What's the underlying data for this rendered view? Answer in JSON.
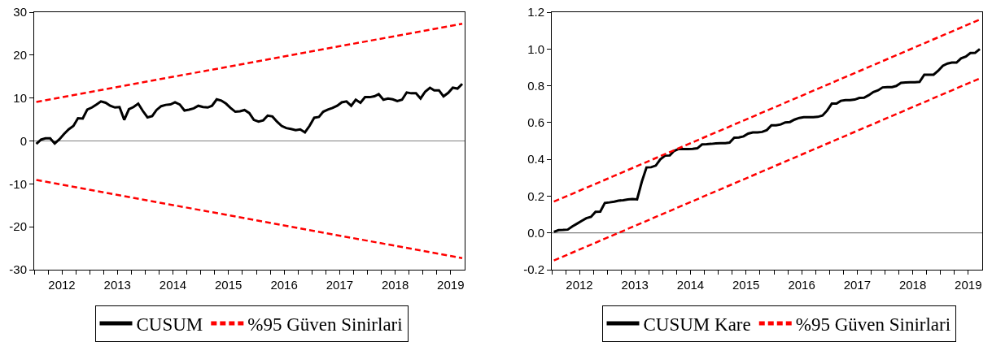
{
  "chart_data": [
    {
      "type": "line",
      "x": [
        "2012-01-15",
        "2012-02-15",
        "2012-03-15",
        "2012-04-15",
        "2012-05-15",
        "2012-06-15",
        "2012-07-15",
        "2012-08-15",
        "2012-09-15",
        "2012-10-15",
        "2012-11-15",
        "2012-12-15",
        "2013-01-15",
        "2013-02-15",
        "2013-03-15",
        "2013-04-15",
        "2013-05-15",
        "2013-06-15",
        "2013-07-15",
        "2013-08-15",
        "2013-09-15",
        "2013-10-15",
        "2013-11-15",
        "2013-12-15",
        "2014-01-15",
        "2014-02-15",
        "2014-03-15",
        "2014-04-15",
        "2014-05-15",
        "2014-06-15",
        "2014-07-15",
        "2014-08-15",
        "2014-09-15",
        "2014-10-15",
        "2014-11-15",
        "2014-12-15",
        "2015-01-15",
        "2015-02-15",
        "2015-03-15",
        "2015-04-15",
        "2015-05-15",
        "2015-06-15",
        "2015-07-15",
        "2015-08-15",
        "2015-09-15",
        "2015-10-15",
        "2015-11-15",
        "2015-12-15",
        "2016-01-15",
        "2016-02-15",
        "2016-03-15",
        "2016-04-15",
        "2016-05-15",
        "2016-06-15",
        "2016-07-15",
        "2016-08-15",
        "2016-09-15",
        "2016-10-15",
        "2016-11-15",
        "2016-12-15",
        "2017-01-15",
        "2017-02-15",
        "2017-03-15",
        "2017-04-15",
        "2017-05-15",
        "2017-06-15",
        "2017-07-15",
        "2017-08-15",
        "2017-09-15",
        "2017-10-15",
        "2017-11-15",
        "2017-12-15",
        "2018-01-15",
        "2018-02-15",
        "2018-03-15",
        "2018-04-15",
        "2018-05-15",
        "2018-06-15",
        "2018-07-15",
        "2018-08-15",
        "2018-09-15",
        "2018-10-15",
        "2018-11-15",
        "2018-12-15",
        "2019-01-15",
        "2019-02-15",
        "2019-03-15",
        "2019-04-15",
        "2019-05-15",
        "2019-06-15",
        "2019-07-15",
        "2019-08-15",
        "2019-09-15"
      ],
      "series": [
        {
          "name": "CUSUM",
          "color": "#000000",
          "line_style": "solid",
          "values": [
            -0.7,
            0.3,
            0.6,
            0.6,
            -0.6,
            0.4,
            1.6,
            2.7,
            3.5,
            5.3,
            5.2,
            7.3,
            7.8,
            8.5,
            9.2,
            8.9,
            8.2,
            7.8,
            7.9,
            4.9,
            7.4,
            7.9,
            8.7,
            7.0,
            5.5,
            5.8,
            7.2,
            8.1,
            8.4,
            8.5,
            9.0,
            8.5,
            7.1,
            7.3,
            7.6,
            8.2,
            7.9,
            7.8,
            8.2,
            9.7,
            9.4,
            8.7,
            7.7,
            6.8,
            6.9,
            7.2,
            6.5,
            4.9,
            4.5,
            4.8,
            5.9,
            5.7,
            4.5,
            3.5,
            3.0,
            2.8,
            2.5,
            2.7,
            2.0,
            3.5,
            5.4,
            5.6,
            6.8,
            7.3,
            7.7,
            8.2,
            9.0,
            9.2,
            8.2,
            9.6,
            8.9,
            10.2,
            10.2,
            10.4,
            10.9,
            9.6,
            9.9,
            9.7,
            9.3,
            9.6,
            11.3,
            11.1,
            11.1,
            9.9,
            11.5,
            12.4,
            11.8,
            11.8,
            10.4,
            11.2,
            12.4,
            12.2,
            13.3
          ]
        },
        {
          "name": "%95 Güven Sinirlari",
          "color": "#ff0000",
          "line_style": "dashed",
          "x": [
            "2012-01-15",
            "2019-09-15"
          ],
          "values": [
            9.1,
            27.3
          ]
        },
        {
          "color": "#ff0000",
          "line_style": "dashed",
          "x": [
            "2012-01-15",
            "2019-09-15"
          ],
          "values": [
            -9.1,
            -27.3
          ]
        }
      ],
      "xlim": [
        "2012-01-01",
        "2019-10-01"
      ],
      "xticks": [
        {
          "value": "2012-01-01",
          "label": null
        },
        {
          "value": "2012-04-01",
          "label": null
        },
        {
          "value": "2012-07-01",
          "label": "2012"
        },
        {
          "value": "2012-10-01",
          "label": null
        },
        {
          "value": "2013-01-01",
          "label": null
        },
        {
          "value": "2013-04-01",
          "label": null
        },
        {
          "value": "2013-07-01",
          "label": "2013"
        },
        {
          "value": "2013-10-01",
          "label": null
        },
        {
          "value": "2014-01-01",
          "label": null
        },
        {
          "value": "2014-04-01",
          "label": null
        },
        {
          "value": "2014-07-01",
          "label": "2014"
        },
        {
          "value": "2014-10-01",
          "label": null
        },
        {
          "value": "2015-01-01",
          "label": null
        },
        {
          "value": "2015-04-01",
          "label": null
        },
        {
          "value": "2015-07-01",
          "label": "2015"
        },
        {
          "value": "2015-10-01",
          "label": null
        },
        {
          "value": "2016-01-01",
          "label": null
        },
        {
          "value": "2016-04-01",
          "label": null
        },
        {
          "value": "2016-07-01",
          "label": "2016"
        },
        {
          "value": "2016-10-01",
          "label": null
        },
        {
          "value": "2017-01-01",
          "label": null
        },
        {
          "value": "2017-04-01",
          "label": null
        },
        {
          "value": "2017-07-01",
          "label": "2017"
        },
        {
          "value": "2017-10-01",
          "label": null
        },
        {
          "value": "2018-01-01",
          "label": null
        },
        {
          "value": "2018-04-01",
          "label": null
        },
        {
          "value": "2018-07-01",
          "label": "2018"
        },
        {
          "value": "2018-10-01",
          "label": null
        },
        {
          "value": "2019-01-01",
          "label": null
        },
        {
          "value": "2019-04-01",
          "label": null
        },
        {
          "value": "2019-07-01",
          "label": "2019"
        }
      ],
      "ylim": [
        -30,
        30
      ],
      "yticks": [
        -30,
        -20,
        -10,
        0,
        10,
        20,
        30
      ],
      "ref_lines": [
        {
          "axis": "y",
          "value": 0,
          "color": "#808080"
        }
      ],
      "grid": false,
      "legend": "bottom"
    },
    {
      "type": "line",
      "x": [
        "2012-01-15",
        "2012-02-15",
        "2012-03-15",
        "2012-04-15",
        "2012-05-15",
        "2012-06-15",
        "2012-07-15",
        "2012-08-15",
        "2012-09-15",
        "2012-10-15",
        "2012-11-15",
        "2012-12-15",
        "2013-01-15",
        "2013-02-15",
        "2013-03-15",
        "2013-04-15",
        "2013-05-15",
        "2013-06-15",
        "2013-07-15",
        "2013-08-15",
        "2013-09-15",
        "2013-10-15",
        "2013-11-15",
        "2013-12-15",
        "2014-01-15",
        "2014-02-15",
        "2014-03-15",
        "2014-04-15",
        "2014-05-15",
        "2014-06-15",
        "2014-07-15",
        "2014-08-15",
        "2014-09-15",
        "2014-10-15",
        "2014-11-15",
        "2014-12-15",
        "2015-01-15",
        "2015-02-15",
        "2015-03-15",
        "2015-04-15",
        "2015-05-15",
        "2015-06-15",
        "2015-07-15",
        "2015-08-15",
        "2015-09-15",
        "2015-10-15",
        "2015-11-15",
        "2015-12-15",
        "2016-01-15",
        "2016-02-15",
        "2016-03-15",
        "2016-04-15",
        "2016-05-15",
        "2016-06-15",
        "2016-07-15",
        "2016-08-15",
        "2016-09-15",
        "2016-10-15",
        "2016-11-15",
        "2016-12-15",
        "2017-01-15",
        "2017-02-15",
        "2017-03-15",
        "2017-04-15",
        "2017-05-15",
        "2017-06-15",
        "2017-07-15",
        "2017-08-15",
        "2017-09-15",
        "2017-10-15",
        "2017-11-15",
        "2017-12-15",
        "2018-01-15",
        "2018-02-15",
        "2018-03-15",
        "2018-04-15",
        "2018-05-15",
        "2018-06-15",
        "2018-07-15",
        "2018-08-15",
        "2018-09-15",
        "2018-10-15",
        "2018-11-15",
        "2018-12-15",
        "2019-01-15",
        "2019-02-15",
        "2019-03-15",
        "2019-04-15",
        "2019-05-15",
        "2019-06-15",
        "2019-07-15",
        "2019-08-15",
        "2019-09-15"
      ],
      "series": [
        {
          "name": "CUSUM Kare",
          "color": "#000000",
          "line_style": "solid",
          "values": [
            0.006,
            0.015,
            0.016,
            0.018,
            0.035,
            0.05,
            0.065,
            0.08,
            0.087,
            0.115,
            0.116,
            0.163,
            0.166,
            0.17,
            0.175,
            0.178,
            0.182,
            0.184,
            0.182,
            0.278,
            0.356,
            0.357,
            0.366,
            0.4,
            0.42,
            0.421,
            0.446,
            0.456,
            0.456,
            0.456,
            0.457,
            0.46,
            0.481,
            0.482,
            0.484,
            0.487,
            0.488,
            0.488,
            0.491,
            0.518,
            0.519,
            0.525,
            0.54,
            0.546,
            0.546,
            0.549,
            0.559,
            0.585,
            0.585,
            0.59,
            0.601,
            0.603,
            0.616,
            0.625,
            0.629,
            0.629,
            0.629,
            0.631,
            0.638,
            0.665,
            0.703,
            0.703,
            0.718,
            0.722,
            0.722,
            0.725,
            0.734,
            0.735,
            0.749,
            0.766,
            0.775,
            0.791,
            0.793,
            0.793,
            0.799,
            0.816,
            0.818,
            0.819,
            0.819,
            0.821,
            0.86,
            0.86,
            0.86,
            0.881,
            0.909,
            0.921,
            0.926,
            0.926,
            0.949,
            0.959,
            0.978,
            0.979,
            1.0
          ]
        },
        {
          "name": "%95 Güven Sinirlari",
          "color": "#ff0000",
          "line_style": "dashed",
          "x": [
            "2012-01-15",
            "2019-09-15"
          ],
          "values": [
            0.17,
            1.16
          ]
        },
        {
          "color": "#ff0000",
          "line_style": "dashed",
          "x": [
            "2012-01-15",
            "2019-09-15"
          ],
          "values": [
            -0.15,
            0.84
          ]
        }
      ],
      "xlim": [
        "2012-01-01",
        "2019-10-01"
      ],
      "xticks": [
        {
          "value": "2012-01-01",
          "label": null
        },
        {
          "value": "2012-04-01",
          "label": null
        },
        {
          "value": "2012-07-01",
          "label": "2012"
        },
        {
          "value": "2012-10-01",
          "label": null
        },
        {
          "value": "2013-01-01",
          "label": null
        },
        {
          "value": "2013-04-01",
          "label": null
        },
        {
          "value": "2013-07-01",
          "label": "2013"
        },
        {
          "value": "2013-10-01",
          "label": null
        },
        {
          "value": "2014-01-01",
          "label": null
        },
        {
          "value": "2014-04-01",
          "label": null
        },
        {
          "value": "2014-07-01",
          "label": "2014"
        },
        {
          "value": "2014-10-01",
          "label": null
        },
        {
          "value": "2015-01-01",
          "label": null
        },
        {
          "value": "2015-04-01",
          "label": null
        },
        {
          "value": "2015-07-01",
          "label": "2015"
        },
        {
          "value": "2015-10-01",
          "label": null
        },
        {
          "value": "2016-01-01",
          "label": null
        },
        {
          "value": "2016-04-01",
          "label": null
        },
        {
          "value": "2016-07-01",
          "label": "2016"
        },
        {
          "value": "2016-10-01",
          "label": null
        },
        {
          "value": "2017-01-01",
          "label": null
        },
        {
          "value": "2017-04-01",
          "label": null
        },
        {
          "value": "2017-07-01",
          "label": "2017"
        },
        {
          "value": "2017-10-01",
          "label": null
        },
        {
          "value": "2018-01-01",
          "label": null
        },
        {
          "value": "2018-04-01",
          "label": null
        },
        {
          "value": "2018-07-01",
          "label": "2018"
        },
        {
          "value": "2018-10-01",
          "label": null
        },
        {
          "value": "2019-01-01",
          "label": null
        },
        {
          "value": "2019-04-01",
          "label": null
        },
        {
          "value": "2019-07-01",
          "label": "2019"
        }
      ],
      "ylim": [
        -0.2,
        1.2
      ],
      "yticks": [
        -0.2,
        {
          "value": 0,
          "label": "0.0"
        },
        0.2,
        0.4,
        0.6,
        0.8,
        {
          "value": 1,
          "label": "1.0"
        },
        1.2
      ],
      "ref_lines": [
        {
          "axis": "y",
          "value": 0,
          "color": "#808080"
        }
      ],
      "grid": false,
      "legend": "bottom"
    }
  ]
}
